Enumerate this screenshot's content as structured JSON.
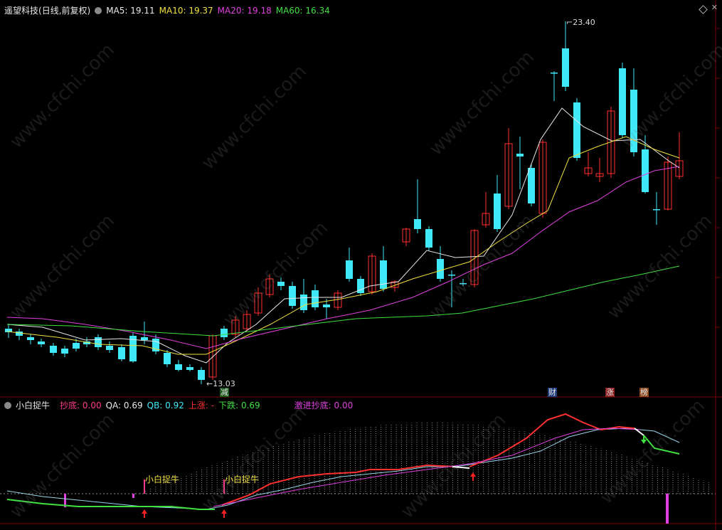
{
  "header": {
    "stock_name": "遥望科技",
    "mode": "(日线,前复权)",
    "ma5": "MA5: 19.11",
    "ma10": "MA10: 19.37",
    "ma20": "MA20: 19.18",
    "ma60": "MA60: 16.34"
  },
  "price_labels": {
    "high": "23.40",
    "low": "13.03"
  },
  "event_tags": {
    "reduce": "减",
    "finance": "财",
    "rise": "涨",
    "rank": "榜"
  },
  "indicator": {
    "name": "小白捉牛",
    "chaodi": "抄底: 0.00",
    "qa": "QA: 0.69",
    "qb": "QB: 0.92",
    "shangzhang": "上涨: -",
    "xiadie": "下跌: 0.69",
    "jinjin": "激进抄底: 0.00",
    "signal_label_1": "小白捉牛",
    "signal_label_2": "小白捉牛"
  },
  "watermark": "www.cfchi.com",
  "colors": {
    "up": "#ff3030",
    "down": "#40e8f8",
    "ma5": "#e8e8e8",
    "ma10": "#f0e040",
    "ma20": "#e040e0",
    "ma60": "#40e040",
    "grid": "#7a0000"
  }
}
